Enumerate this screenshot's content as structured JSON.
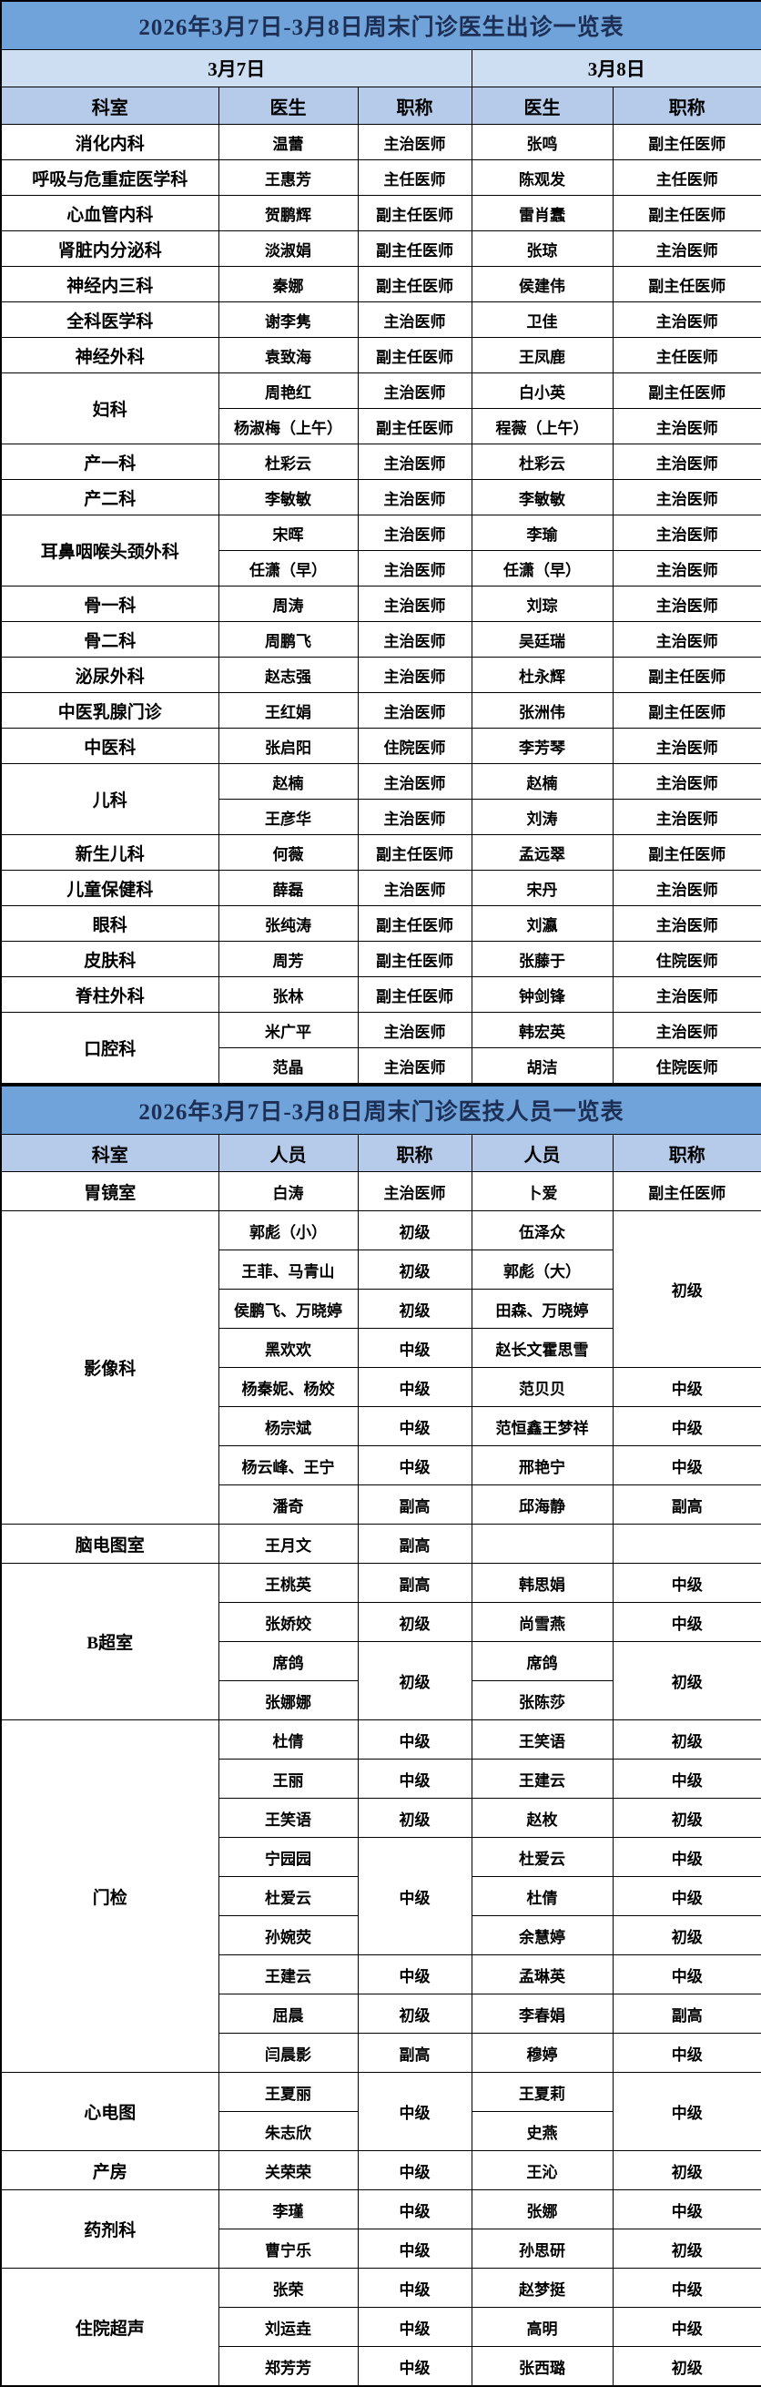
{
  "table1": {
    "title": "2026年3月7日-3月8日周末门诊医生出诊一览表",
    "date_left": "3月7日",
    "date_right": "3月8日",
    "headers": [
      "科室",
      "医生",
      "职称",
      "医生",
      "职称"
    ],
    "groups": [
      {
        "dept": "消化内科",
        "rows": [
          [
            "温蕾",
            "主治医师",
            "张鸣",
            "副主任医师"
          ]
        ]
      },
      {
        "dept": "呼吸与危重症医学科",
        "rows": [
          [
            "王惠芳",
            "主任医师",
            "陈观发",
            "主任医师"
          ]
        ]
      },
      {
        "dept": "心血管内科",
        "rows": [
          [
            "贺鹏辉",
            "副主任医师",
            "雷肖蠢",
            "副主任医师"
          ]
        ]
      },
      {
        "dept": "肾脏内分泌科",
        "rows": [
          [
            "淡淑娟",
            "副主任医师",
            "张琼",
            "主治医师"
          ]
        ]
      },
      {
        "dept": "神经内三科",
        "rows": [
          [
            "秦娜",
            "副主任医师",
            "侯建伟",
            "副主任医师"
          ]
        ]
      },
      {
        "dept": "全科医学科",
        "rows": [
          [
            "谢李隽",
            "主治医师",
            "卫佳",
            "主治医师"
          ]
        ]
      },
      {
        "dept": "神经外科",
        "rows": [
          [
            "袁致海",
            "副主任医师",
            "王凤鹿",
            "主任医师"
          ]
        ]
      },
      {
        "dept": "妇科",
        "rows": [
          [
            "周艳红",
            "主治医师",
            "白小英",
            "副主任医师"
          ],
          [
            "杨淑梅（上午）",
            "副主任医师",
            "程薇（上午）",
            "主治医师"
          ]
        ]
      },
      {
        "dept": "产一科",
        "rows": [
          [
            "杜彩云",
            "主治医师",
            "杜彩云",
            "主治医师"
          ]
        ]
      },
      {
        "dept": "产二科",
        "rows": [
          [
            "李敏敏",
            "主治医师",
            "李敏敏",
            "主治医师"
          ]
        ]
      },
      {
        "dept": "耳鼻咽喉头颈外科",
        "rows": [
          [
            "宋晖",
            "主治医师",
            "李瑜",
            "主治医师"
          ],
          [
            "任潇（早）",
            "主治医师",
            "任潇（早）",
            "主治医师"
          ]
        ]
      },
      {
        "dept": "骨一科",
        "rows": [
          [
            "周涛",
            "主治医师",
            "刘琮",
            "主治医师"
          ]
        ]
      },
      {
        "dept": "骨二科",
        "rows": [
          [
            "周鹏飞",
            "主治医师",
            "吴廷瑞",
            "主治医师"
          ]
        ]
      },
      {
        "dept": "泌尿外科",
        "rows": [
          [
            "赵志强",
            "主治医师",
            "杜永辉",
            "副主任医师"
          ]
        ]
      },
      {
        "dept": "中医乳腺门诊",
        "rows": [
          [
            "王红娟",
            "主治医师",
            "张洲伟",
            "副主任医师"
          ]
        ]
      },
      {
        "dept": "中医科",
        "rows": [
          [
            "张启阳",
            "住院医师",
            "李芳琴",
            "主治医师"
          ]
        ]
      },
      {
        "dept": "儿科",
        "rows": [
          [
            "赵楠",
            "主治医师",
            "赵楠",
            "主治医师"
          ],
          [
            "王彦华",
            "主治医师",
            "刘涛",
            "主治医师"
          ]
        ]
      },
      {
        "dept": "新生儿科",
        "rows": [
          [
            "何薇",
            "副主任医师",
            "孟远翠",
            "副主任医师"
          ]
        ]
      },
      {
        "dept": "儿童保健科",
        "rows": [
          [
            "薛磊",
            "主治医师",
            "宋丹",
            "主治医师"
          ]
        ]
      },
      {
        "dept": "眼科",
        "rows": [
          [
            "张纯涛",
            "副主任医师",
            "刘瀛",
            "主治医师"
          ]
        ]
      },
      {
        "dept": "皮肤科",
        "rows": [
          [
            "周芳",
            "副主任医师",
            "张藤于",
            "住院医师"
          ]
        ]
      },
      {
        "dept": "脊柱外科",
        "rows": [
          [
            "张林",
            "副主任医师",
            "钟剑锋",
            "主治医师"
          ]
        ]
      },
      {
        "dept": "口腔科",
        "rows": [
          [
            "米广平",
            "主治医师",
            "韩宏英",
            "主治医师"
          ],
          [
            "范晶",
            "主治医师",
            "胡洁",
            "住院医师"
          ]
        ]
      }
    ]
  },
  "table2": {
    "title": "2026年3月7日-3月8日周末门诊医技人员一览表",
    "headers": [
      "科室",
      "人员",
      "职称",
      "人员",
      "职称"
    ],
    "groups": [
      {
        "dept": "胃镜室",
        "rows": [
          [
            "白涛",
            "主治医师",
            "卜爱",
            "副主任医师"
          ]
        ]
      },
      {
        "dept": "影像科",
        "rows": [
          [
            "郭彪（小）",
            "初级",
            "伍泽众",
            {
              "t": "初级",
              "rs": 4
            }
          ],
          [
            "王菲、马青山",
            "初级",
            "郭彪（大）",
            null
          ],
          [
            "侯鹏飞、万晓婷",
            "初级",
            "田森、万晓婷",
            null
          ],
          [
            "黑欢欢",
            "中级",
            "赵长文霍思雪",
            null
          ],
          [
            "杨秦妮、杨姣",
            "中级",
            "范贝贝",
            "中级"
          ],
          [
            "杨宗斌",
            "中级",
            "范恒鑫王梦祥",
            "中级"
          ],
          [
            "杨云峰、王宁",
            "中级",
            "邢艳宁",
            "中级"
          ],
          [
            "潘奇",
            "副高",
            "邱海静",
            "副高"
          ]
        ]
      },
      {
        "dept": "脑电图室",
        "rows": [
          [
            "王月文",
            "副高",
            "",
            ""
          ]
        ]
      },
      {
        "dept": "B超室",
        "rows": [
          [
            "王桃英",
            "副高",
            "韩思娟",
            "中级"
          ],
          [
            "张娇姣",
            "初级",
            "尚雪燕",
            "中级"
          ],
          [
            "席鸽",
            {
              "t": "初级",
              "rs": 2
            },
            "席鸽",
            {
              "t": "初级",
              "rs": 2
            }
          ],
          [
            "张娜娜",
            null,
            "张陈莎",
            null
          ]
        ]
      },
      {
        "dept": "门检",
        "rows": [
          [
            "杜倩",
            "中级",
            "王笑语",
            "初级"
          ],
          [
            "王丽",
            "中级",
            "王建云",
            "中级"
          ],
          [
            "王笑语",
            "初级",
            "赵枚",
            "初级"
          ],
          [
            "宁园园",
            {
              "t": "中级",
              "rs": 3
            },
            "杜爱云",
            "中级"
          ],
          [
            "杜爱云",
            null,
            "杜倩",
            "中级"
          ],
          [
            "孙婉荧",
            null,
            "余慧婷",
            "初级"
          ],
          [
            "王建云",
            "中级",
            "孟琳英",
            "中级"
          ],
          [
            "屈晨",
            "初级",
            "李春娟",
            "副高"
          ],
          [
            "闫晨影",
            "副高",
            "穆婷",
            "中级"
          ]
        ]
      },
      {
        "dept": "心电图",
        "rows": [
          [
            "王夏丽",
            {
              "t": "中级",
              "rs": 2
            },
            "王夏莉",
            {
              "t": "中级",
              "rs": 2
            }
          ],
          [
            "朱志欣",
            null,
            "史燕",
            null
          ]
        ]
      },
      {
        "dept": "产房",
        "rows": [
          [
            "关荣荣",
            "中级",
            "王沁",
            "初级"
          ]
        ]
      },
      {
        "dept": "药剂科",
        "rows": [
          [
            "李瑾",
            "中级",
            "张娜",
            "中级"
          ],
          [
            "曹宁乐",
            "中级",
            "孙思研",
            "初级"
          ]
        ]
      },
      {
        "dept": "住院超声",
        "rows": [
          [
            "张荣",
            "中级",
            "赵梦挺",
            "中级"
          ],
          [
            "刘运垚",
            "中级",
            "高明",
            "中级"
          ],
          [
            "郑芳芳",
            "中级",
            "张西璐",
            "初级"
          ]
        ]
      }
    ]
  }
}
